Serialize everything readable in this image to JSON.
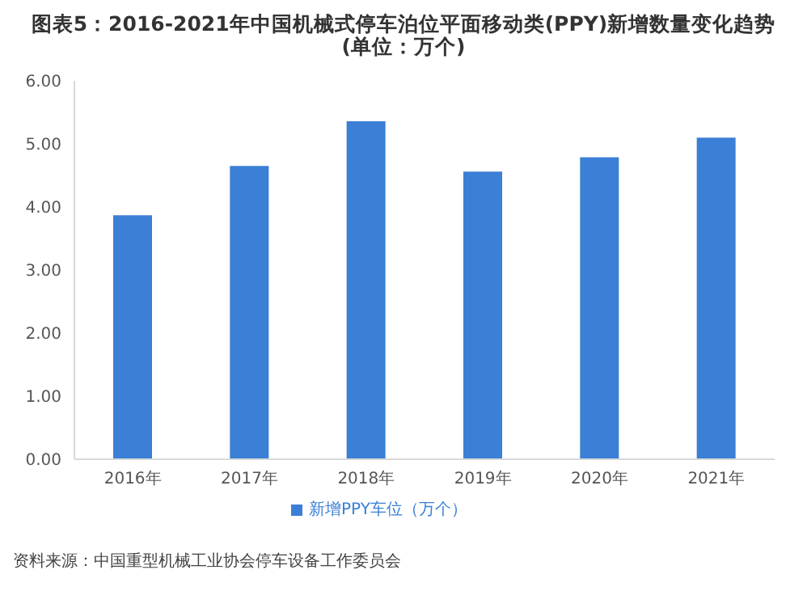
{
  "chart_data": {
    "type": "bar",
    "title": "图表5：2016-2021年中国机械式停车泊位平面移动类(PPY)新增数量变化趋势",
    "subtitle": "(单位：万个)",
    "categories": [
      "2016年",
      "2017年",
      "2018年",
      "2019年",
      "2020年",
      "2021年"
    ],
    "series": [
      {
        "name": "新增PPY车位（万个）",
        "color": "#3b7fd6",
        "values": [
          3.87,
          4.65,
          5.36,
          4.56,
          4.79,
          5.1
        ]
      }
    ],
    "ylim": [
      0,
      6
    ],
    "yticks": [
      {
        "value": 0,
        "label": "0.00"
      },
      {
        "value": 1,
        "label": "1.00"
      },
      {
        "value": 2,
        "label": "2.00"
      },
      {
        "value": 3,
        "label": "3.00"
      },
      {
        "value": 4,
        "label": "4.00"
      },
      {
        "value": 5,
        "label": "5.00"
      },
      {
        "value": 6,
        "label": "6.00"
      }
    ],
    "grid": false,
    "legend": "bottom",
    "annotations": [
      "资料来源：中国重型机械工业协会停车设备工作委员会"
    ]
  }
}
